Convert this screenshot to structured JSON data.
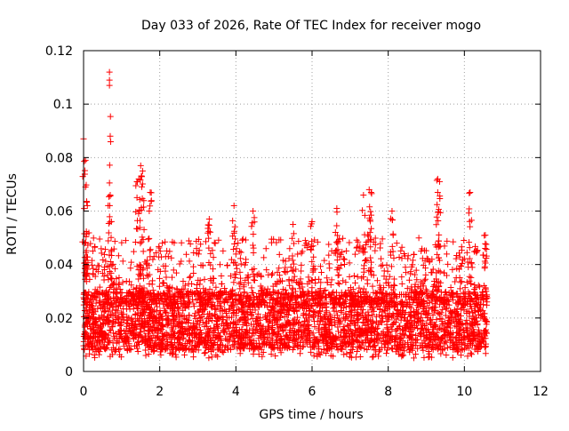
{
  "chart_data": {
    "type": "scatter",
    "title": "Day 033 of 2026, Rate Of TEC Index for receiver mogo",
    "xlabel": "GPS time / hours",
    "ylabel": "ROTI / TECUs",
    "xlim": [
      0,
      12
    ],
    "ylim": [
      0,
      0.12
    ],
    "xticks": [
      0,
      2,
      4,
      6,
      8,
      10,
      12
    ],
    "xtick_labels": [
      "0",
      "2",
      "4",
      "6",
      "8",
      "10",
      "12"
    ],
    "yticks": [
      0,
      0.02,
      0.04,
      0.06,
      0.08,
      0.1,
      0.12
    ],
    "ytick_labels": [
      "0",
      "0.02",
      "0.04",
      "0.06",
      "0.08",
      "0.1",
      "0.12"
    ],
    "grid": true,
    "marker": "+",
    "color": "#ff0000",
    "x_range_of_data": [
      0,
      10.6
    ],
    "baseline_band": [
      0.008,
      0.03
    ],
    "series": [
      {
        "name": "ROTI",
        "notable_points": [
          {
            "x": 0.0,
            "y": 0.087
          },
          {
            "x": 0.05,
            "y": 0.079
          },
          {
            "x": 0.05,
            "y": 0.069
          },
          {
            "x": 0.1,
            "y": 0.062
          },
          {
            "x": 0.68,
            "y": 0.112
          },
          {
            "x": 0.68,
            "y": 0.109
          },
          {
            "x": 0.68,
            "y": 0.107
          },
          {
            "x": 0.7,
            "y": 0.088
          },
          {
            "x": 0.7,
            "y": 0.066
          },
          {
            "x": 1.5,
            "y": 0.077
          },
          {
            "x": 1.55,
            "y": 0.075
          },
          {
            "x": 1.45,
            "y": 0.072
          },
          {
            "x": 1.75,
            "y": 0.067
          },
          {
            "x": 1.4,
            "y": 0.071
          },
          {
            "x": 3.3,
            "y": 0.057
          },
          {
            "x": 3.95,
            "y": 0.062
          },
          {
            "x": 4.45,
            "y": 0.06
          },
          {
            "x": 5.5,
            "y": 0.055
          },
          {
            "x": 6.0,
            "y": 0.056
          },
          {
            "x": 6.65,
            "y": 0.061
          },
          {
            "x": 7.35,
            "y": 0.066
          },
          {
            "x": 7.5,
            "y": 0.068
          },
          {
            "x": 7.55,
            "y": 0.067
          },
          {
            "x": 8.1,
            "y": 0.06
          },
          {
            "x": 9.3,
            "y": 0.072
          },
          {
            "x": 9.35,
            "y": 0.071
          },
          {
            "x": 9.3,
            "y": 0.067
          },
          {
            "x": 10.15,
            "y": 0.067
          },
          {
            "x": 10.55,
            "y": 0.051
          }
        ]
      }
    ]
  }
}
